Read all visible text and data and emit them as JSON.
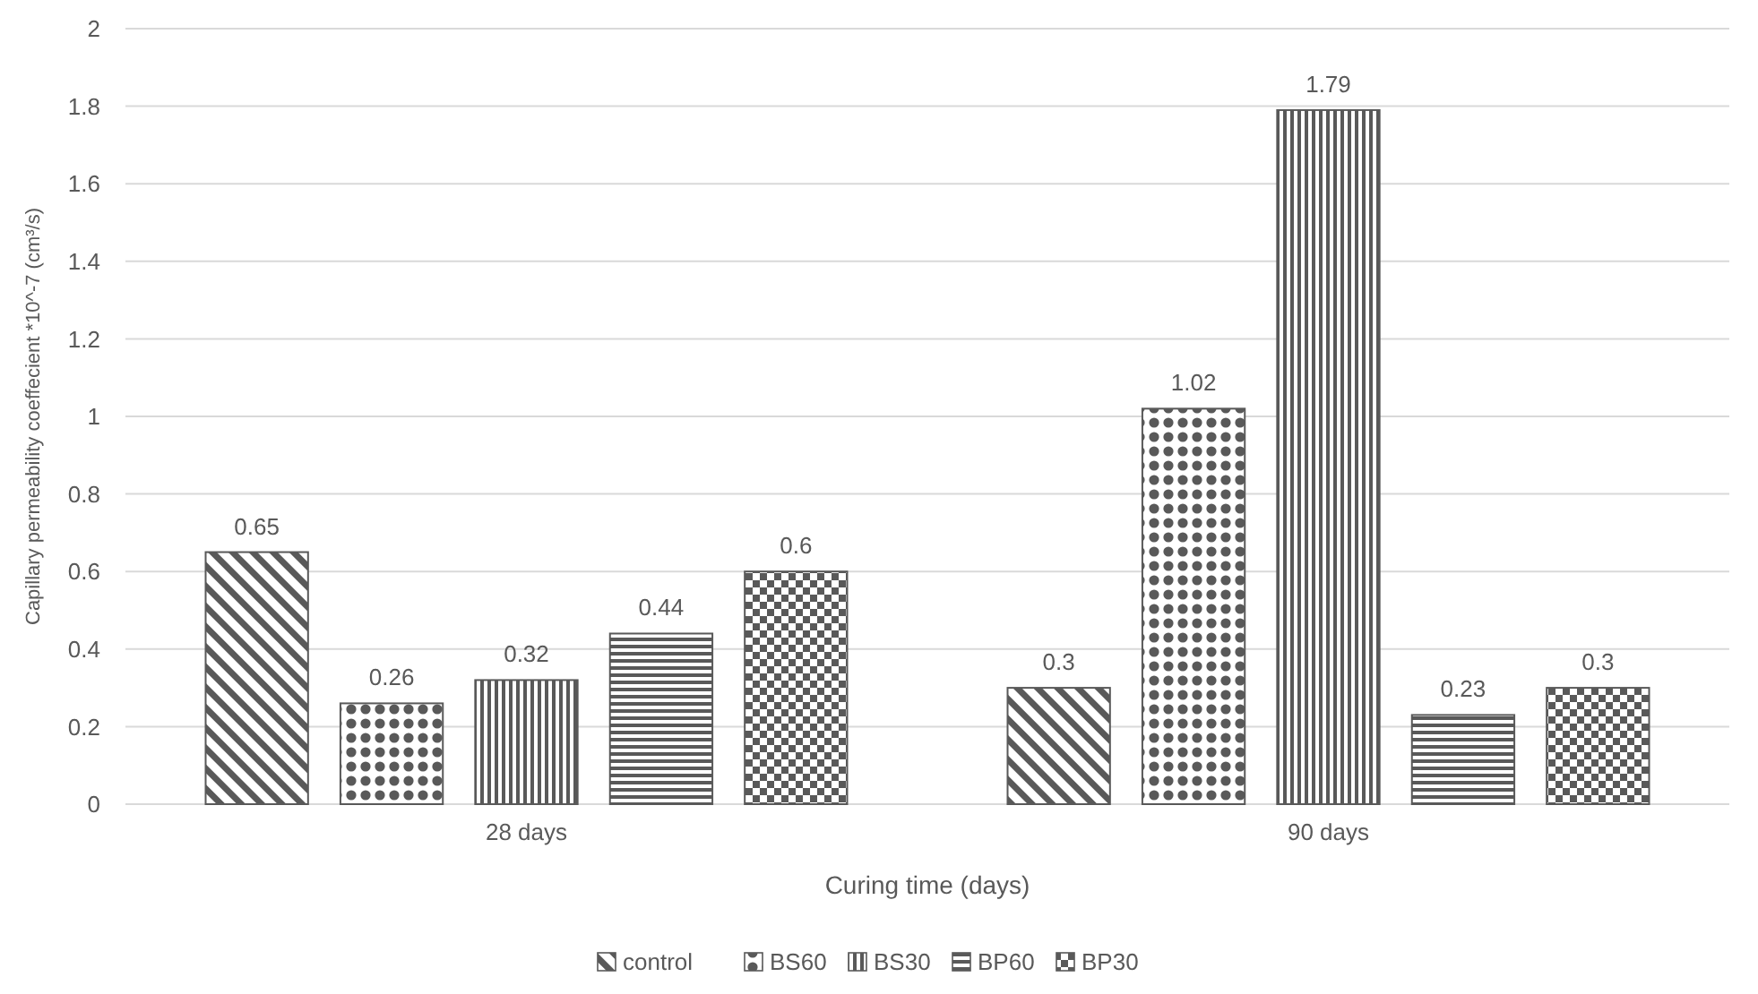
{
  "chart_data": {
    "type": "bar",
    "xlabel": "Curing time (days)",
    "ylabel": "Capillary permeability coeffecient *10^-7 (cm³/s)",
    "categories": [
      "28 days",
      "90 days"
    ],
    "series": [
      {
        "name": "control",
        "color": "#595959",
        "values": [
          0.65,
          0.3
        ]
      },
      {
        "name": "BS60",
        "color": "#595959",
        "values": [
          0.26,
          1.02
        ]
      },
      {
        "name": "BS30",
        "color": "#595959",
        "values": [
          0.32,
          1.79
        ]
      },
      {
        "name": "BP60",
        "color": "#595959",
        "values": [
          0.44,
          0.23
        ]
      },
      {
        "name": "BP30",
        "color": "#595959",
        "values": [
          0.6,
          0.3
        ]
      }
    ],
    "ylim": [
      0,
      2
    ],
    "yticks": [
      0,
      0.2,
      0.4,
      0.6,
      0.8,
      1,
      1.2,
      1.4,
      1.6,
      1.8,
      2
    ],
    "grid": "y",
    "legend": "bottom",
    "data_labels": true
  }
}
